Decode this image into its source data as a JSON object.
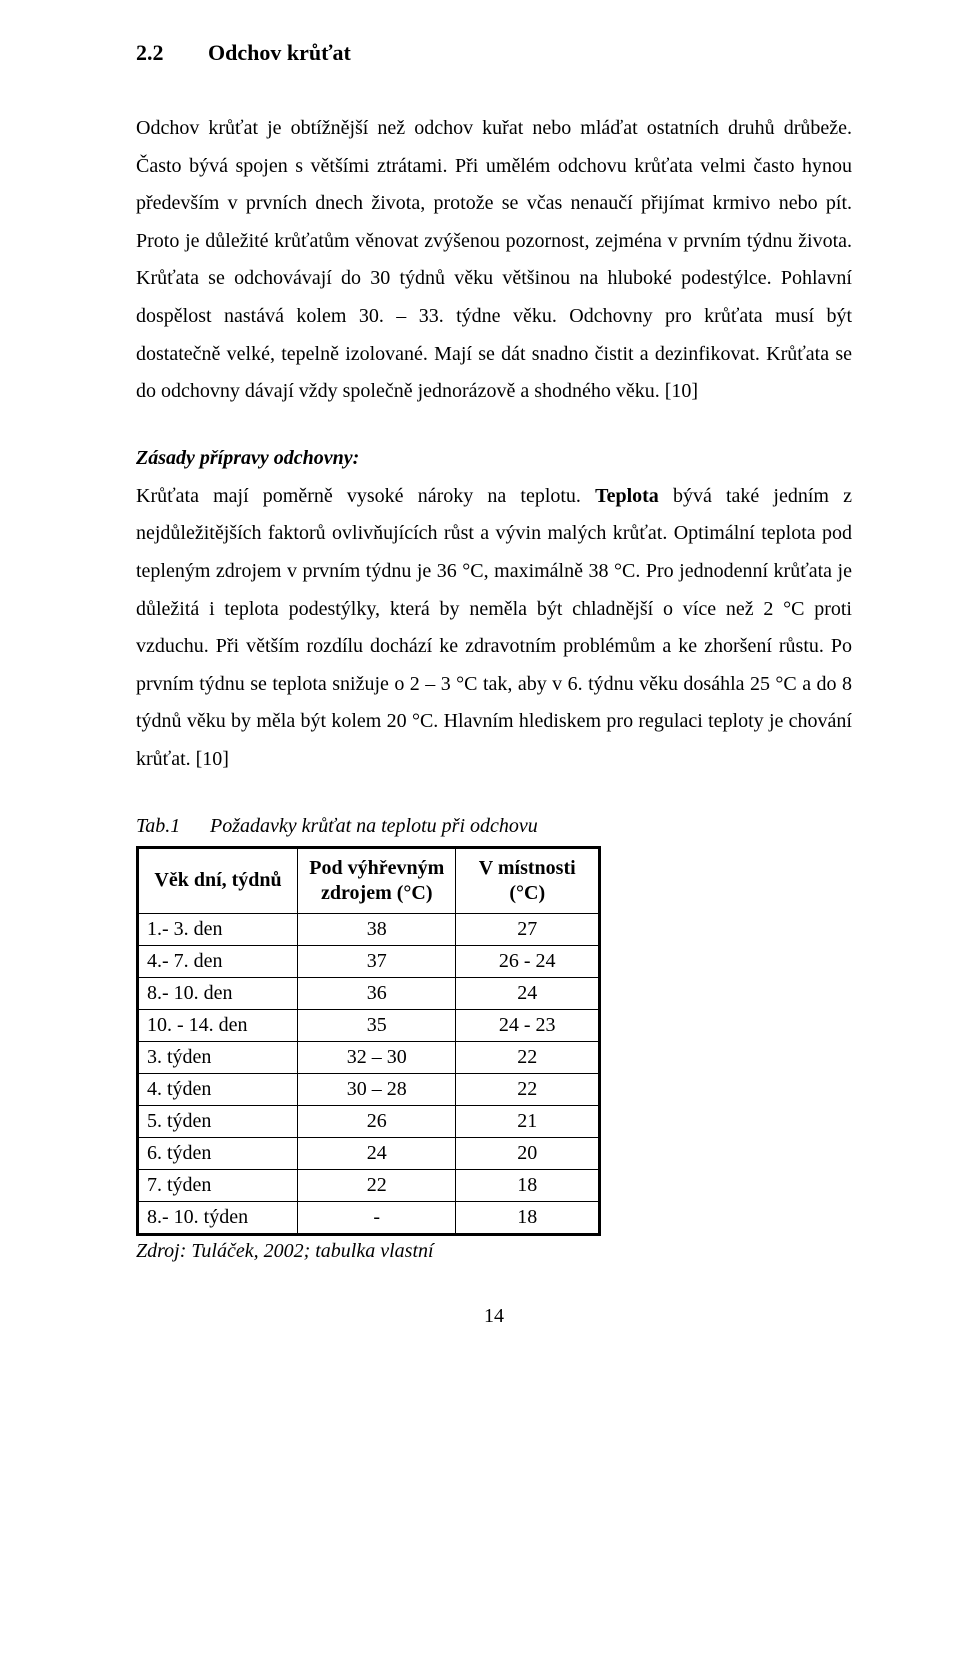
{
  "heading": {
    "num": "2.2",
    "title": "Odchov krůťat"
  },
  "para1": "Odchov krůťat je obtížnější než odchov kuřat nebo mláďat ostatních druhů drůbeže. Často bývá spojen s většími ztrátami. Při umělém odchovu krůťata velmi často hynou především v prvních dnech života, protože se včas nenaučí přijímat krmivo nebo pít. Proto je důležité krůťatům věnovat zvýšenou pozornost, zejména v prvním týdnu života. Krůťata se odchovávají do 30 týdnů věku většinou na hluboké podestýlce. Pohlavní dospělost nastává kolem 30. – 33. týdne věku. Odchovny pro krůťata musí být dostatečně velké, tepelně izolované. Mají se dát snadno čistit a dezinfikovat. Krůťata se do odchovny dávají vždy společně jednorázově a shodného věku. [10]",
  "principles_heading": "Zásady přípravy odchovny:",
  "para2_pre": "Krůťata mají poměrně vysoké nároky na teplotu. ",
  "para2_bold": "Teplota",
  "para2_post": " bývá také jedním z nejdůležitějších faktorů ovlivňujících růst a vývin malých krůťat. Optimální teplota pod tepleným zdrojem v prvním týdnu je 36 °C, maximálně 38 °C. Pro jednodenní krůťata je důležitá i teplota podestýlky, která by neměla být chladnější o více než 2 °C proti vzduchu. Při větším rozdílu dochází ke zdravotním problémům a ke zhoršení růstu. Po prvním týdnu se teplota snižuje o 2 – 3 °C tak, aby v 6. týdnu věku dosáhla 25 °C a do 8 týdnů věku by měla být kolem 20 °C. Hlavním hlediskem pro regulaci teploty je chování krůťat. [10]",
  "table": {
    "caption_num": "Tab.1",
    "caption_text": "Požadavky krůťat na teplotu při odchovu",
    "header": [
      "Věk dní, týdnů",
      "Pod výhřevným zdrojem (°C)",
      "V místnosti (°C)"
    ],
    "rows": [
      [
        "1.- 3. den",
        "38",
        "27"
      ],
      [
        "4.- 7. den",
        "37",
        "26 - 24"
      ],
      [
        "8.- 10. den",
        "36",
        "24"
      ],
      [
        "10. - 14. den",
        "35",
        "24 - 23"
      ],
      [
        "3. týden",
        "32 – 30",
        "22"
      ],
      [
        "4. týden",
        "30 – 28",
        "22"
      ],
      [
        "5. týden",
        "26",
        "21"
      ],
      [
        "6. týden",
        "24",
        "20"
      ],
      [
        "7. týden",
        "22",
        "18"
      ],
      [
        "8.- 10. týden",
        "-",
        "18"
      ]
    ],
    "source": "Zdroj: Tuláček, 2002; tabulka vlastní"
  },
  "page_number": "14"
}
